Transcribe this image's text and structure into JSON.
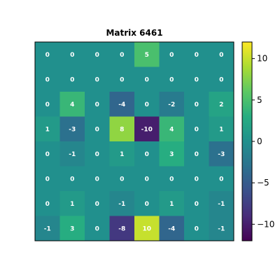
{
  "chart_data": {
    "type": "heatmap",
    "title": "Matrix 6461",
    "colormap": "viridis",
    "vmin": -12,
    "vmax": 12,
    "colorbar_ticks": [
      10,
      5,
      0,
      -5,
      -10
    ],
    "colorbar_tick_labels": [
      "10",
      "5",
      "0",
      "−5",
      "−10"
    ],
    "axes_visible": false,
    "matrix": [
      [
        0,
        0,
        0,
        0,
        5,
        0,
        0,
        0
      ],
      [
        0,
        0,
        0,
        0,
        0,
        0,
        0,
        0
      ],
      [
        0,
        4,
        0,
        -4,
        0,
        -2,
        0,
        2
      ],
      [
        1,
        -3,
        0,
        8,
        -10,
        4,
        0,
        1
      ],
      [
        0,
        -1,
        0,
        1,
        0,
        3,
        0,
        -3
      ],
      [
        0,
        0,
        0,
        0,
        0,
        0,
        0,
        0
      ],
      [
        0,
        1,
        0,
        -1,
        0,
        1,
        0,
        -1
      ],
      [
        -1,
        3,
        0,
        -8,
        10,
        -4,
        0,
        -1
      ]
    ]
  }
}
